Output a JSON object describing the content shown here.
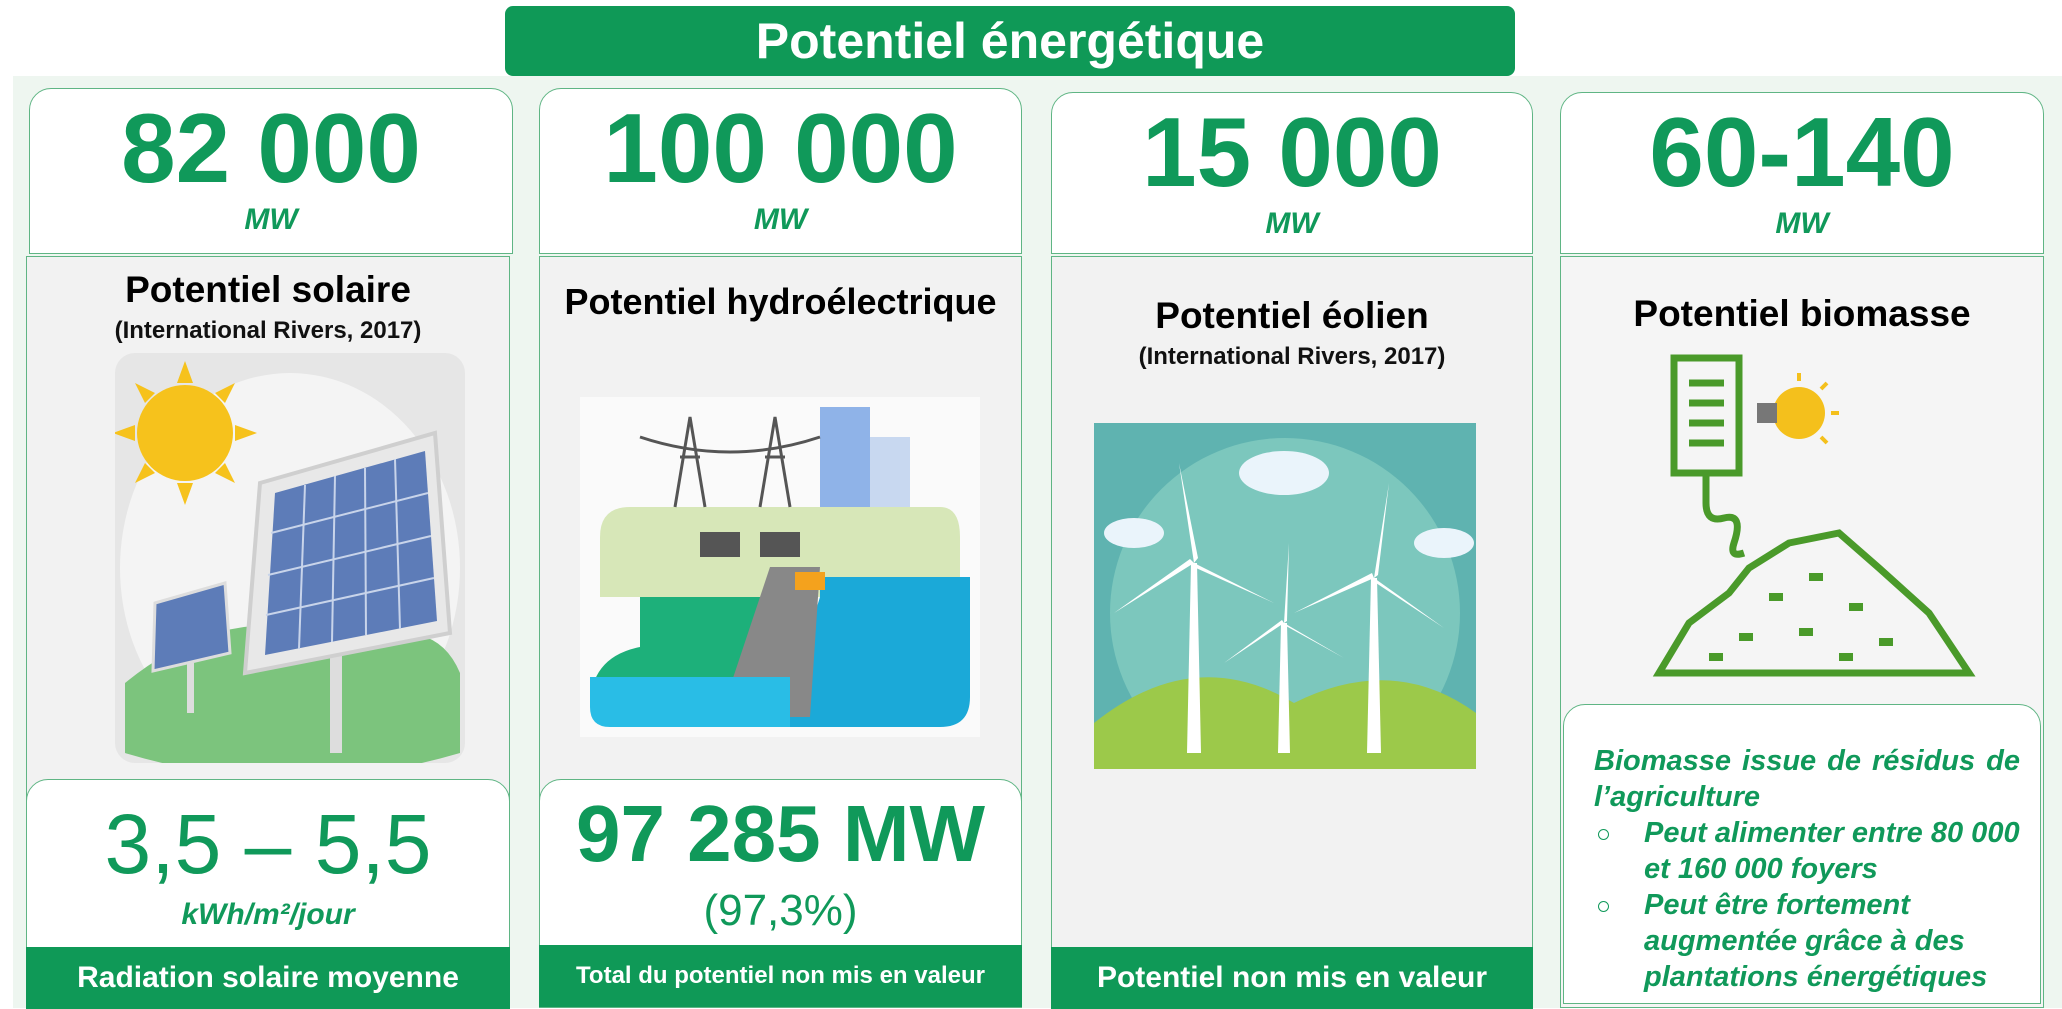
{
  "header": {
    "title": "Potentiel énergétique"
  },
  "cards": [
    {
      "value": "82 000",
      "unit": "MW",
      "heading": "Potentiel solaire",
      "source": "(International Rivers, 2017)",
      "sub_value": "3,5 – 5,5",
      "sub_unit": "kWh/m²/jour",
      "footer": "Radiation solaire moyenne"
    },
    {
      "value": "100 000",
      "unit": "MW",
      "heading": "Potentiel hydroélectrique",
      "sub_value": "97 285 MW",
      "sub_note": "(97,3%)",
      "footer": "Total du potentiel non mis en valeur"
    },
    {
      "value": "15 000",
      "unit": "MW",
      "heading": "Potentiel éolien",
      "source": "(International Rivers, 2017)",
      "footer": "Potentiel non mis en valeur"
    },
    {
      "value": "60-140",
      "unit": "MW",
      "heading": "Potentiel biomasse",
      "note": "Biomasse issue de résidus de l’agriculture",
      "bullets": [
        "Peut alimenter entre 80 000 et 160 000 foyers",
        "Peut être fortement augmentée grâce à des plantations énergétiques"
      ]
    }
  ]
}
